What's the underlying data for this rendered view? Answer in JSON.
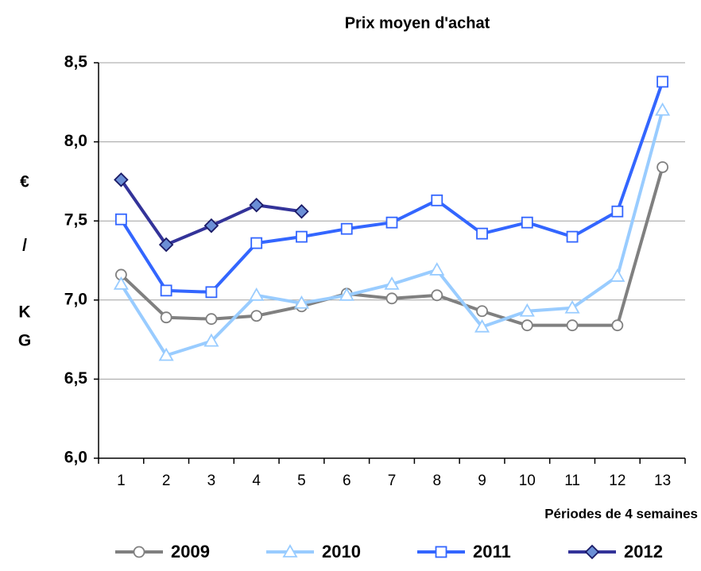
{
  "chart_data": {
    "type": "line",
    "title": "Prix moyen d'achat",
    "xlabel": "Périodes de 4 semaines",
    "ylabel": [
      "€",
      "/",
      "K",
      "G"
    ],
    "categories": [
      "1",
      "2",
      "3",
      "4",
      "5",
      "6",
      "7",
      "8",
      "9",
      "10",
      "11",
      "12",
      "13"
    ],
    "ylim": [
      6.0,
      8.5
    ],
    "yticks": [
      {
        "value": 6.0,
        "label": "6,0"
      },
      {
        "value": 6.5,
        "label": "6,5"
      },
      {
        "value": 7.0,
        "label": "7,0"
      },
      {
        "value": 7.5,
        "label": "7,5"
      },
      {
        "value": 8.0,
        "label": "8,0"
      },
      {
        "value": 8.5,
        "label": "8,5"
      }
    ],
    "grid": true,
    "legend": "bottom",
    "series": [
      {
        "name": "2009",
        "color": "#808080",
        "marker": "circle",
        "values": [
          7.16,
          6.89,
          6.88,
          6.9,
          6.96,
          7.04,
          7.01,
          7.03,
          6.93,
          6.84,
          6.84,
          6.84,
          7.84
        ]
      },
      {
        "name": "2010",
        "color": "#99ccff",
        "marker": "triangle",
        "values": [
          7.1,
          6.65,
          6.74,
          7.03,
          6.98,
          7.03,
          7.1,
          7.19,
          6.83,
          6.93,
          6.95,
          7.15,
          8.2
        ]
      },
      {
        "name": "2011",
        "color": "#3366ff",
        "marker": "square",
        "values": [
          7.51,
          7.06,
          7.05,
          7.36,
          7.4,
          7.45,
          7.49,
          7.63,
          7.42,
          7.49,
          7.4,
          7.56,
          8.38
        ]
      },
      {
        "name": "2012",
        "color": "#333399",
        "marker": "diamond",
        "values": [
          7.76,
          7.35,
          7.47,
          7.6,
          7.56,
          null,
          null,
          null,
          null,
          null,
          null,
          null,
          null
        ]
      }
    ]
  }
}
